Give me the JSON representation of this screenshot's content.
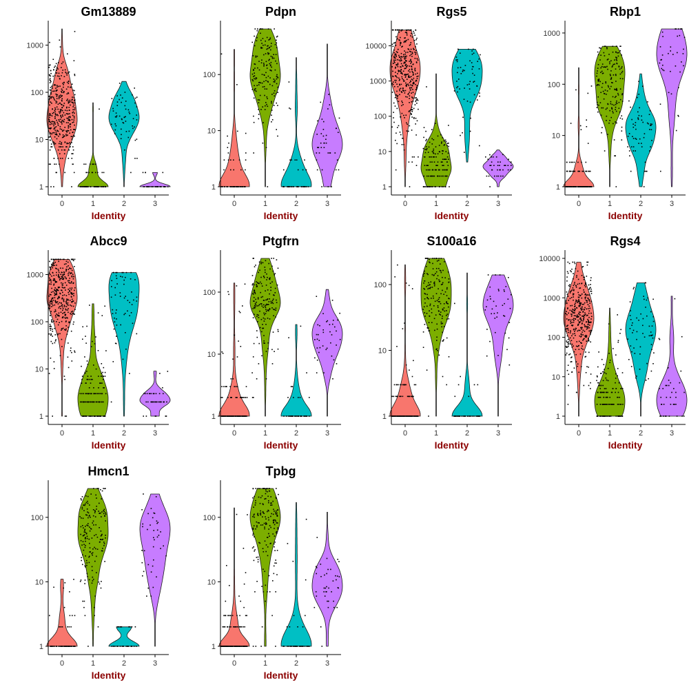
{
  "colors": {
    "0": "#F8766D",
    "1": "#7CAE00",
    "2": "#00BFC4",
    "3": "#C77CFF",
    "axis_label": "#8B0000"
  },
  "chart_data": [
    {
      "type": "violin",
      "title": "Gm13889",
      "xlabel": "Identity",
      "ylabel": "",
      "categories": [
        "0",
        "1",
        "2",
        "3"
      ],
      "scale": "log10",
      "ylim": [
        1,
        2200
      ],
      "yticks": [
        1,
        10,
        100,
        1000
      ],
      "ytick_labels": [
        "1",
        "10",
        "100",
        "1000"
      ],
      "series": [
        {
          "category": "0",
          "median": 40,
          "min": 1,
          "max": 2200,
          "n": 400
        },
        {
          "category": "1",
          "median": 1,
          "min": 1,
          "max": 60,
          "n": 60
        },
        {
          "category": "2",
          "median": 30,
          "min": 1,
          "max": 170,
          "n": 60
        },
        {
          "category": "3",
          "median": 1,
          "min": 1,
          "max": 2,
          "n": 30
        }
      ]
    },
    {
      "type": "violin",
      "title": "Pdpn",
      "xlabel": "Identity",
      "ylabel": "",
      "categories": [
        "0",
        "1",
        "2",
        "3"
      ],
      "scale": "log10",
      "ylim": [
        1,
        650
      ],
      "yticks": [
        1,
        10,
        100
      ],
      "ytick_labels": [
        "1",
        "10",
        "100"
      ],
      "series": [
        {
          "category": "0",
          "median": 1,
          "min": 1,
          "max": 280,
          "n": 60
        },
        {
          "category": "1",
          "median": 120,
          "min": 1,
          "max": 650,
          "n": 180
        },
        {
          "category": "2",
          "median": 1,
          "min": 1,
          "max": 200,
          "n": 40
        },
        {
          "category": "3",
          "median": 5,
          "min": 1,
          "max": 350,
          "n": 40
        }
      ]
    },
    {
      "type": "violin",
      "title": "Rgs5",
      "xlabel": "Identity",
      "ylabel": "",
      "categories": [
        "0",
        "1",
        "2",
        "3"
      ],
      "scale": "log10",
      "ylim": [
        1,
        30000
      ],
      "yticks": [
        1,
        10,
        100,
        1000,
        10000
      ],
      "ytick_labels": [
        "1",
        "10",
        "100",
        "1000",
        "10000"
      ],
      "series": [
        {
          "category": "0",
          "median": 1800,
          "min": 1,
          "max": 28000,
          "n": 400
        },
        {
          "category": "1",
          "median": 4,
          "min": 1,
          "max": 1600,
          "n": 150
        },
        {
          "category": "2",
          "median": 2200,
          "min": 5,
          "max": 8000,
          "n": 60
        },
        {
          "category": "3",
          "median": 4,
          "min": 1,
          "max": 11,
          "n": 40
        }
      ]
    },
    {
      "type": "violin",
      "title": "Rbp1",
      "xlabel": "Identity",
      "ylabel": "",
      "categories": [
        "0",
        "1",
        "2",
        "3"
      ],
      "scale": "log10",
      "ylim": [
        1,
        1200
      ],
      "yticks": [
        1,
        10,
        100,
        1000
      ],
      "ytick_labels": [
        "1",
        "10",
        "100",
        "1000"
      ],
      "series": [
        {
          "category": "0",
          "median": 1,
          "min": 1,
          "max": 210,
          "n": 150
        },
        {
          "category": "1",
          "median": 110,
          "min": 1,
          "max": 550,
          "n": 180
        },
        {
          "category": "2",
          "median": 10,
          "min": 1,
          "max": 160,
          "n": 60
        },
        {
          "category": "3",
          "median": 350,
          "min": 1,
          "max": 1200,
          "n": 40
        }
      ]
    },
    {
      "type": "violin",
      "title": "Abcc9",
      "xlabel": "Identity",
      "ylabel": "",
      "categories": [
        "0",
        "1",
        "2",
        "3"
      ],
      "scale": "log10",
      "ylim": [
        1,
        2200
      ],
      "yticks": [
        1,
        10,
        100,
        1000
      ],
      "ytick_labels": [
        "1",
        "10",
        "100",
        "1000"
      ],
      "series": [
        {
          "category": "0",
          "median": 450,
          "min": 1,
          "max": 2100,
          "n": 400
        },
        {
          "category": "1",
          "median": 2,
          "min": 1,
          "max": 240,
          "n": 150
        },
        {
          "category": "2",
          "median": 450,
          "min": 1,
          "max": 1100,
          "n": 60
        },
        {
          "category": "3",
          "median": 2,
          "min": 1,
          "max": 9,
          "n": 40
        }
      ]
    },
    {
      "type": "violin",
      "title": "Ptgfrn",
      "xlabel": "Identity",
      "ylabel": "",
      "categories": [
        "0",
        "1",
        "2",
        "3"
      ],
      "scale": "log10",
      "ylim": [
        1,
        350
      ],
      "yticks": [
        1,
        10,
        100
      ],
      "ytick_labels": [
        "1",
        "10",
        "100"
      ],
      "series": [
        {
          "category": "0",
          "median": 1,
          "min": 1,
          "max": 140,
          "n": 150
        },
        {
          "category": "1",
          "median": 80,
          "min": 1,
          "max": 350,
          "n": 180
        },
        {
          "category": "2",
          "median": 1,
          "min": 1,
          "max": 30,
          "n": 40
        },
        {
          "category": "3",
          "median": 20,
          "min": 1,
          "max": 110,
          "n": 40
        }
      ]
    },
    {
      "type": "violin",
      "title": "S100a16",
      "xlabel": "Identity",
      "ylabel": "",
      "categories": [
        "0",
        "1",
        "2",
        "3"
      ],
      "scale": "log10",
      "ylim": [
        1,
        250
      ],
      "yticks": [
        1,
        10,
        100
      ],
      "ytick_labels": [
        "1",
        "10",
        "100"
      ],
      "series": [
        {
          "category": "0",
          "median": 1,
          "min": 1,
          "max": 200,
          "n": 150
        },
        {
          "category": "1",
          "median": 70,
          "min": 1,
          "max": 250,
          "n": 180
        },
        {
          "category": "2",
          "median": 1,
          "min": 1,
          "max": 150,
          "n": 40
        },
        {
          "category": "3",
          "median": 40,
          "min": 1,
          "max": 140,
          "n": 40
        }
      ]
    },
    {
      "type": "violin",
      "title": "Rgs4",
      "xlabel": "Identity",
      "ylabel": "",
      "categories": [
        "0",
        "1",
        "2",
        "3"
      ],
      "scale": "log10",
      "ylim": [
        1,
        10000
      ],
      "yticks": [
        1,
        10,
        100,
        1000,
        10000
      ],
      "ytick_labels": [
        "1",
        "10",
        "100",
        "1000",
        "10000"
      ],
      "series": [
        {
          "category": "0",
          "median": 350,
          "min": 1,
          "max": 8000,
          "n": 400
        },
        {
          "category": "1",
          "median": 2,
          "min": 1,
          "max": 550,
          "n": 150
        },
        {
          "category": "2",
          "median": 200,
          "min": 1,
          "max": 2400,
          "n": 60
        },
        {
          "category": "3",
          "median": 2,
          "min": 1,
          "max": 1100,
          "n": 40
        }
      ]
    },
    {
      "type": "violin",
      "title": "Hmcn1",
      "xlabel": "Identity",
      "ylabel": "",
      "categories": [
        "0",
        "1",
        "2",
        "3"
      ],
      "scale": "log10",
      "ylim": [
        1,
        280
      ],
      "yticks": [
        1,
        10,
        100
      ],
      "ytick_labels": [
        "1",
        "10",
        "100"
      ],
      "series": [
        {
          "category": "0",
          "median": 1,
          "min": 1,
          "max": 11,
          "n": 60
        },
        {
          "category": "1",
          "median": 60,
          "min": 1,
          "max": 280,
          "n": 180
        },
        {
          "category": "2",
          "median": 1,
          "min": 1,
          "max": 2,
          "n": 30
        },
        {
          "category": "3",
          "median": 40,
          "min": 1,
          "max": 230,
          "n": 40
        }
      ]
    },
    {
      "type": "violin",
      "title": "Tpbg",
      "xlabel": "Identity",
      "ylabel": "",
      "categories": [
        "0",
        "1",
        "2",
        "3"
      ],
      "scale": "log10",
      "ylim": [
        1,
        280
      ],
      "yticks": [
        1,
        10,
        100
      ],
      "ytick_labels": [
        "1",
        "10",
        "100"
      ],
      "series": [
        {
          "category": "0",
          "median": 1,
          "min": 1,
          "max": 140,
          "n": 150
        },
        {
          "category": "1",
          "median": 90,
          "min": 1,
          "max": 280,
          "n": 180
        },
        {
          "category": "2",
          "median": 1,
          "min": 1,
          "max": 170,
          "n": 40
        },
        {
          "category": "3",
          "median": 10,
          "min": 1,
          "max": 120,
          "n": 40
        }
      ]
    }
  ]
}
